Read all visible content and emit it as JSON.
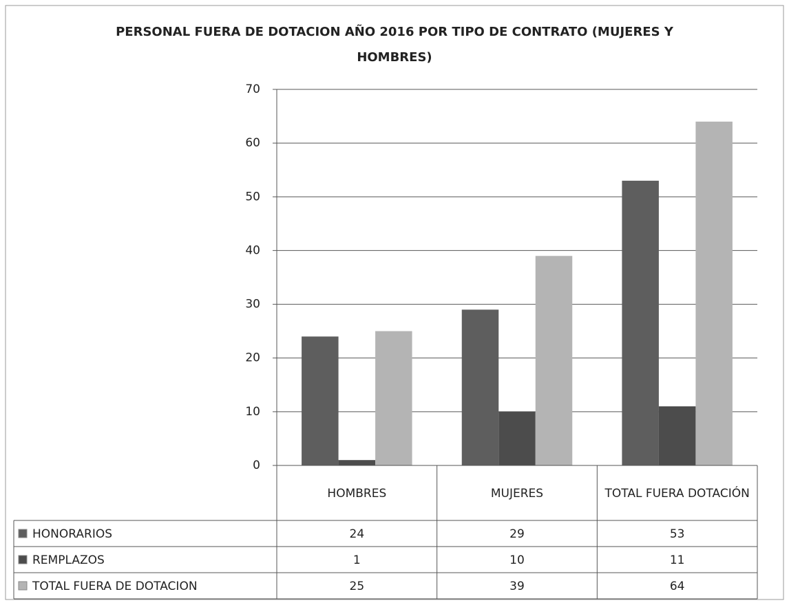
{
  "chart_data": {
    "type": "bar",
    "title": "PERSONAL FUERA DE DOTACION AÑO 2016 POR TIPO DE CONTRATO (MUJERES Y HOMBRES)",
    "categories": [
      "HOMBRES",
      "MUJERES",
      "TOTAL FUERA DOTACIÓN"
    ],
    "series": [
      {
        "name": "HONORARIOS",
        "color": "#5e5e5e",
        "values": [
          24,
          29,
          53
        ]
      },
      {
        "name": "REMPLAZOS",
        "color": "#4c4c4c",
        "values": [
          1,
          10,
          11
        ]
      },
      {
        "name": "TOTAL FUERA DE DOTACION",
        "color": "#b4b4b4",
        "values": [
          25,
          39,
          64
        ]
      }
    ],
    "ylim": [
      0,
      70
    ],
    "yticks": [
      0,
      10,
      20,
      30,
      40,
      50,
      60,
      70
    ],
    "grid": true
  }
}
